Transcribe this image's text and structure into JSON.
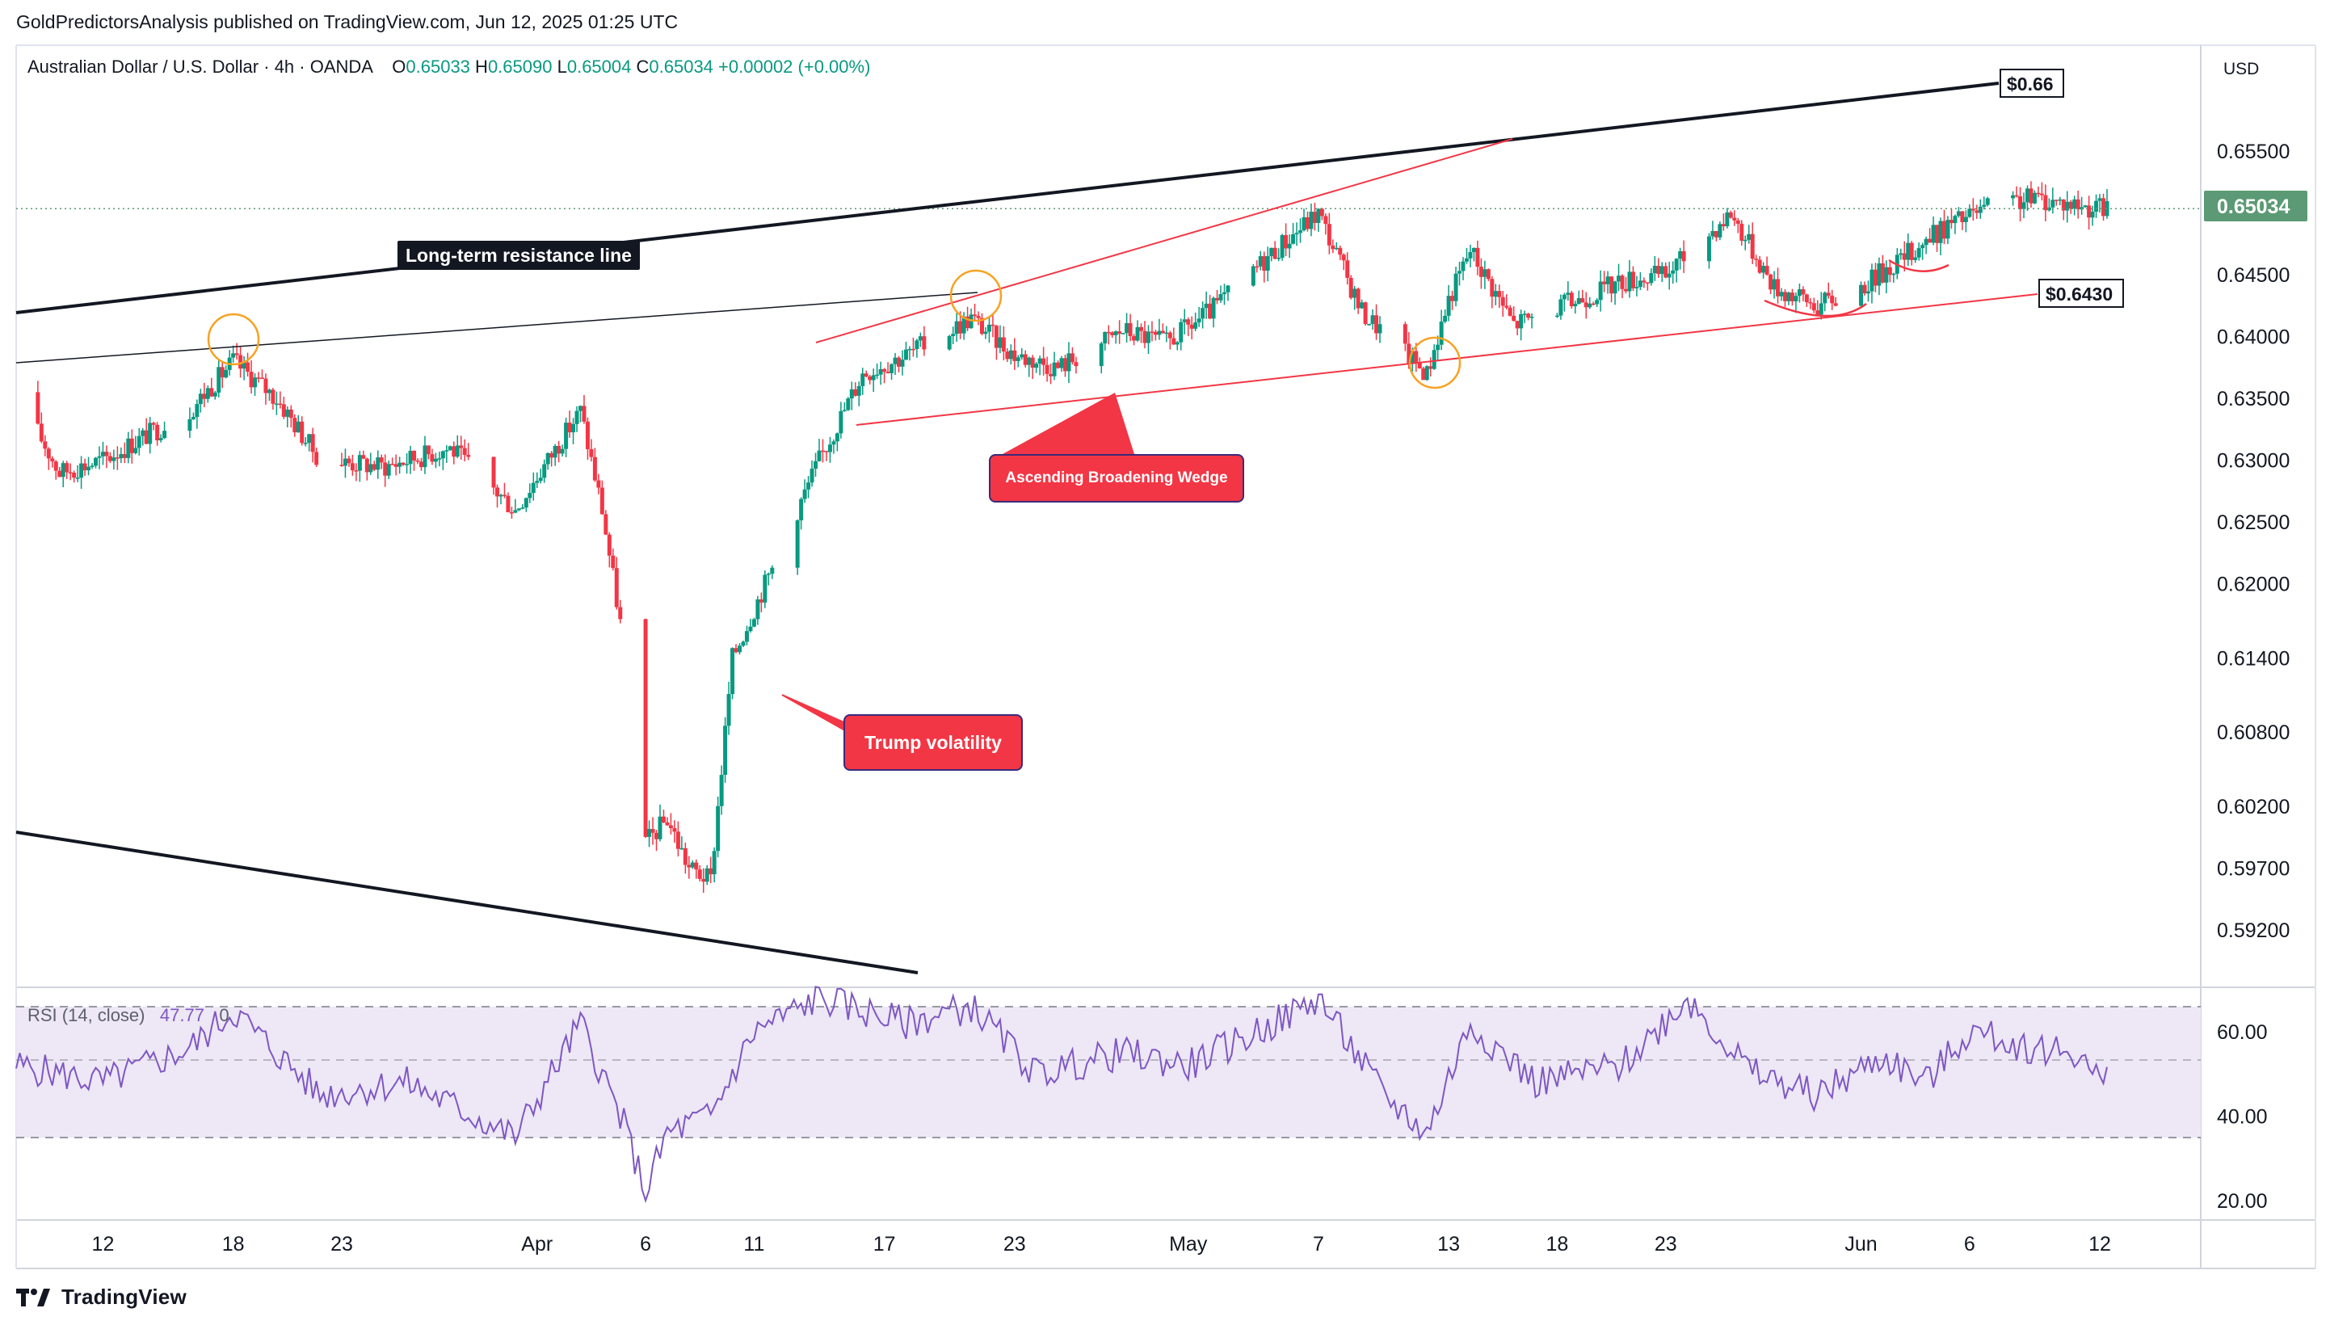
{
  "header": {
    "publisher_line": "GoldPredictorsAnalysis published on TradingView.com, Jun 12, 2025 01:25 UTC",
    "symbol": "Australian Dollar / U.S. Dollar",
    "interval": "4h",
    "exchange": "OANDA",
    "open_label": "O",
    "open": "0.65033",
    "high_label": "H",
    "high": "0.65090",
    "low_label": "L",
    "low": "0.65004",
    "close_label": "C",
    "close": "0.65034",
    "change": "+0.00002 (+0.00%)"
  },
  "price_axis": {
    "currency": "USD",
    "ticks": [
      "0.65500",
      "0.64500",
      "0.64000",
      "0.63500",
      "0.63000",
      "0.62500",
      "0.62000",
      "0.61400",
      "0.60800",
      "0.60200",
      "0.59700",
      "0.59200"
    ],
    "last_price": "0.65034"
  },
  "rsi": {
    "label": "RSI (14, close)",
    "value": "47.77",
    "extra": "0",
    "ticks": [
      "60.00",
      "40.00",
      "20.00"
    ]
  },
  "time_axis": {
    "ticks": [
      "12",
      "18",
      "23",
      "Apr",
      "6",
      "11",
      "17",
      "23",
      "May",
      "7",
      "13",
      "18",
      "23",
      "Jun",
      "6",
      "12"
    ]
  },
  "annotations": {
    "long_term_resistance": "Long-term resistance line",
    "wedge": "Ascending Broadening Wedge",
    "trump": "Trump volatility",
    "price_066": "$0.66",
    "price_06430": "$0.6430"
  },
  "footer": {
    "brand": "TradingView"
  },
  "colors": {
    "up": "#089981",
    "down": "#f23645",
    "rsi_line": "#7e57c2",
    "rsi_band": "#ede7f6",
    "annotation_red": "#f23645",
    "last_price_bg": "#5b9a74"
  },
  "chart_data": {
    "type": "candlestick",
    "symbol": "Australian Dollar / U.S. Dollar",
    "x_ticks": [
      "12",
      "18",
      "23",
      "Apr",
      "6",
      "11",
      "17",
      "23",
      "May",
      "7",
      "13",
      "18",
      "23",
      "Jun",
      "6",
      "12"
    ],
    "y_ticks": [
      0.655,
      0.645,
      0.64,
      0.635,
      0.63,
      0.625,
      0.62,
      0.614,
      0.608,
      0.602,
      0.597,
      0.592
    ],
    "close_path": [
      {
        "date": "Mar 08",
        "close": 0.6355
      },
      {
        "date": "Mar 10",
        "close": 0.629
      },
      {
        "date": "Mar 12",
        "close": 0.63
      },
      {
        "date": "Mar 14",
        "close": 0.632
      },
      {
        "date": "Mar 16",
        "close": 0.634
      },
      {
        "date": "Mar 18",
        "close": 0.638
      },
      {
        "date": "Mar 20",
        "close": 0.635
      },
      {
        "date": "Mar 22",
        "close": 0.63
      },
      {
        "date": "Mar 25",
        "close": 0.6295
      },
      {
        "date": "Mar 28",
        "close": 0.631
      },
      {
        "date": "Mar 31",
        "close": 0.626
      },
      {
        "date": "Apr 03",
        "close": 0.634
      },
      {
        "date": "Apr 04",
        "close": 0.626
      },
      {
        "date": "Apr 05",
        "close": 0.615
      },
      {
        "date": "Apr 06",
        "close": 0.599
      },
      {
        "date": "Apr 07",
        "close": 0.601
      },
      {
        "date": "Apr 08",
        "close": 0.597
      },
      {
        "date": "Apr 09",
        "close": 0.596
      },
      {
        "date": "Apr 10",
        "close": 0.614
      },
      {
        "date": "Apr 12",
        "close": 0.622
      },
      {
        "date": "Apr 14",
        "close": 0.63
      },
      {
        "date": "Apr 16",
        "close": 0.637
      },
      {
        "date": "Apr 18",
        "close": 0.6385
      },
      {
        "date": "Apr 21",
        "close": 0.6415
      },
      {
        "date": "Apr 23",
        "close": 0.6385
      },
      {
        "date": "Apr 25",
        "close": 0.6375
      },
      {
        "date": "Apr 28",
        "close": 0.6405
      },
      {
        "date": "Apr 30",
        "close": 0.6395
      },
      {
        "date": "May 02",
        "close": 0.642
      },
      {
        "date": "May 05",
        "close": 0.647
      },
      {
        "date": "May 07",
        "close": 0.65
      },
      {
        "date": "May 09",
        "close": 0.642
      },
      {
        "date": "May 12",
        "close": 0.637
      },
      {
        "date": "May 13",
        "close": 0.643
      },
      {
        "date": "May 14",
        "close": 0.647
      },
      {
        "date": "May 16",
        "close": 0.641
      },
      {
        "date": "May 19",
        "close": 0.643
      },
      {
        "date": "May 21",
        "close": 0.6445
      },
      {
        "date": "May 23",
        "close": 0.645
      },
      {
        "date": "May 26",
        "close": 0.65
      },
      {
        "date": "May 28",
        "close": 0.644
      },
      {
        "date": "May 30",
        "close": 0.6425
      },
      {
        "date": "Jun 01",
        "close": 0.644
      },
      {
        "date": "Jun 03",
        "close": 0.6465
      },
      {
        "date": "Jun 05",
        "close": 0.649
      },
      {
        "date": "Jun 07",
        "close": 0.6505
      },
      {
        "date": "Jun 09",
        "close": 0.6512
      },
      {
        "date": "Jun 12",
        "close": 0.65034
      }
    ],
    "rsi": {
      "name": "RSI (14, close)",
      "last": 47.77,
      "y_ticks": [
        60,
        40,
        20
      ],
      "bands": [
        30,
        50,
        70
      ],
      "path": [
        {
          "date": "Mar 08",
          "value": 52
        },
        {
          "date": "Mar 12",
          "value": 48
        },
        {
          "date": "Mar 16",
          "value": 56
        },
        {
          "date": "Mar 18",
          "value": 65
        },
        {
          "date": "Mar 22",
          "value": 45
        },
        {
          "date": "Mar 26",
          "value": 48
        },
        {
          "date": "Mar 31",
          "value": 35
        },
        {
          "date": "Apr 03",
          "value": 62
        },
        {
          "date": "Apr 05",
          "value": 38
        },
        {
          "date": "Apr 06",
          "value": 22
        },
        {
          "date": "Apr 07",
          "value": 36
        },
        {
          "date": "Apr 09",
          "value": 40
        },
        {
          "date": "Apr 11",
          "value": 60
        },
        {
          "date": "Apr 14",
          "value": 68
        },
        {
          "date": "Apr 18",
          "value": 62
        },
        {
          "date": "Apr 21",
          "value": 66
        },
        {
          "date": "Apr 24",
          "value": 50
        },
        {
          "date": "Apr 28",
          "value": 55
        },
        {
          "date": "May 01",
          "value": 52
        },
        {
          "date": "May 05",
          "value": 62
        },
        {
          "date": "May 07",
          "value": 68
        },
        {
          "date": "May 10",
          "value": 45
        },
        {
          "date": "May 12",
          "value": 36
        },
        {
          "date": "May 14",
          "value": 62
        },
        {
          "date": "May 17",
          "value": 48
        },
        {
          "date": "May 21",
          "value": 52
        },
        {
          "date": "May 24",
          "value": 68
        },
        {
          "date": "May 27",
          "value": 50
        },
        {
          "date": "May 30",
          "value": 45
        },
        {
          "date": "Jun 02",
          "value": 54
        },
        {
          "date": "Jun 04",
          "value": 48
        },
        {
          "date": "Jun 06",
          "value": 60
        },
        {
          "date": "Jun 09",
          "value": 56
        },
        {
          "date": "Jun 11",
          "value": 55
        },
        {
          "date": "Jun 12",
          "value": 47.77
        }
      ]
    }
  }
}
